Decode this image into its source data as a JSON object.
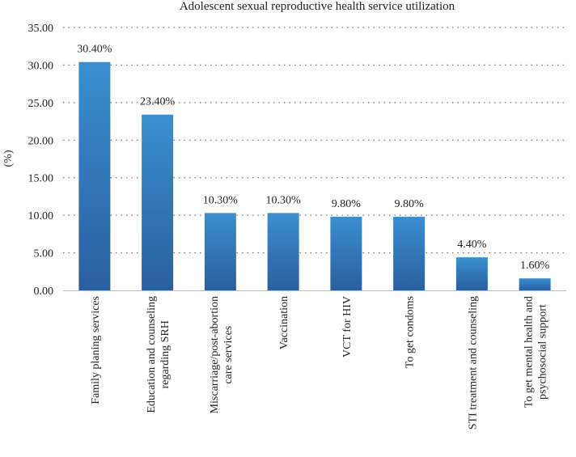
{
  "chart_data": {
    "type": "bar",
    "title": "Adolescent sexual reproductive health service utilization",
    "xlabel": "",
    "ylabel": "(%)",
    "ylim": [
      0,
      35
    ],
    "yticks": [
      "0.00",
      "5.00",
      "10.00",
      "15.00",
      "20.00",
      "25.00",
      "30.00",
      "35.00"
    ],
    "grid": "horizontal dotted",
    "categories": [
      [
        "Family planing services"
      ],
      [
        "Education and counseling",
        "regarding SRH"
      ],
      [
        "Miscarriage/post-abortion",
        "care services"
      ],
      [
        "Vaccination"
      ],
      [
        "VCT for HIV"
      ],
      [
        "To get condoms"
      ],
      [
        "STI treatment and counseling"
      ],
      [
        "To get mental health and",
        "psychosocial support"
      ]
    ],
    "values": [
      30.4,
      23.4,
      10.3,
      10.3,
      9.8,
      9.8,
      4.4,
      1.6
    ],
    "data_labels": [
      "30.40%",
      "23.40%",
      "10.30%",
      "10.30%",
      "9.80%",
      "9.80%",
      "4.40%",
      "1.60%"
    ],
    "bar_color_top": "#3a8fd0",
    "bar_color_bottom": "#2a5f9f"
  }
}
